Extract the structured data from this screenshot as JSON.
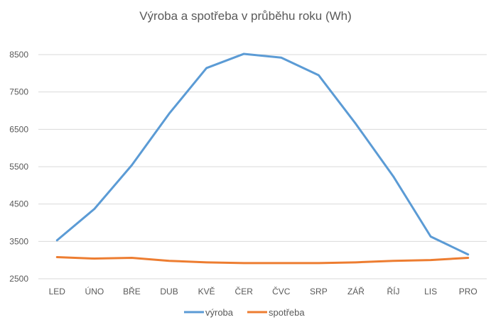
{
  "chart_data": {
    "type": "line",
    "title": "Výroba a spotřeba v průběhu roku (Wh)",
    "xlabel": "",
    "ylabel": "",
    "categories": [
      "LED",
      "ÚNO",
      "BŘE",
      "DUB",
      "KVĚ",
      "ČER",
      "ČVC",
      "SRP",
      "ZÁŘ",
      "ŘÍJ",
      "LIS",
      "PRO"
    ],
    "ylim": [
      2500,
      9000
    ],
    "yticks": [
      "2500",
      "3500",
      "4500",
      "5500",
      "6500",
      "7500",
      "8500"
    ],
    "grid": true,
    "legend": "bottom",
    "series": [
      {
        "name": "výroba",
        "color": "#5b9bd5",
        "values": [
          3530,
          4370,
          5540,
          6920,
          8140,
          8520,
          8420,
          7950,
          6640,
          5240,
          3630,
          3150
        ]
      },
      {
        "name": "spotřeba",
        "color": "#ed7d31",
        "values": [
          3080,
          3040,
          3060,
          2980,
          2940,
          2920,
          2920,
          2920,
          2940,
          2980,
          3000,
          3060
        ]
      }
    ]
  }
}
